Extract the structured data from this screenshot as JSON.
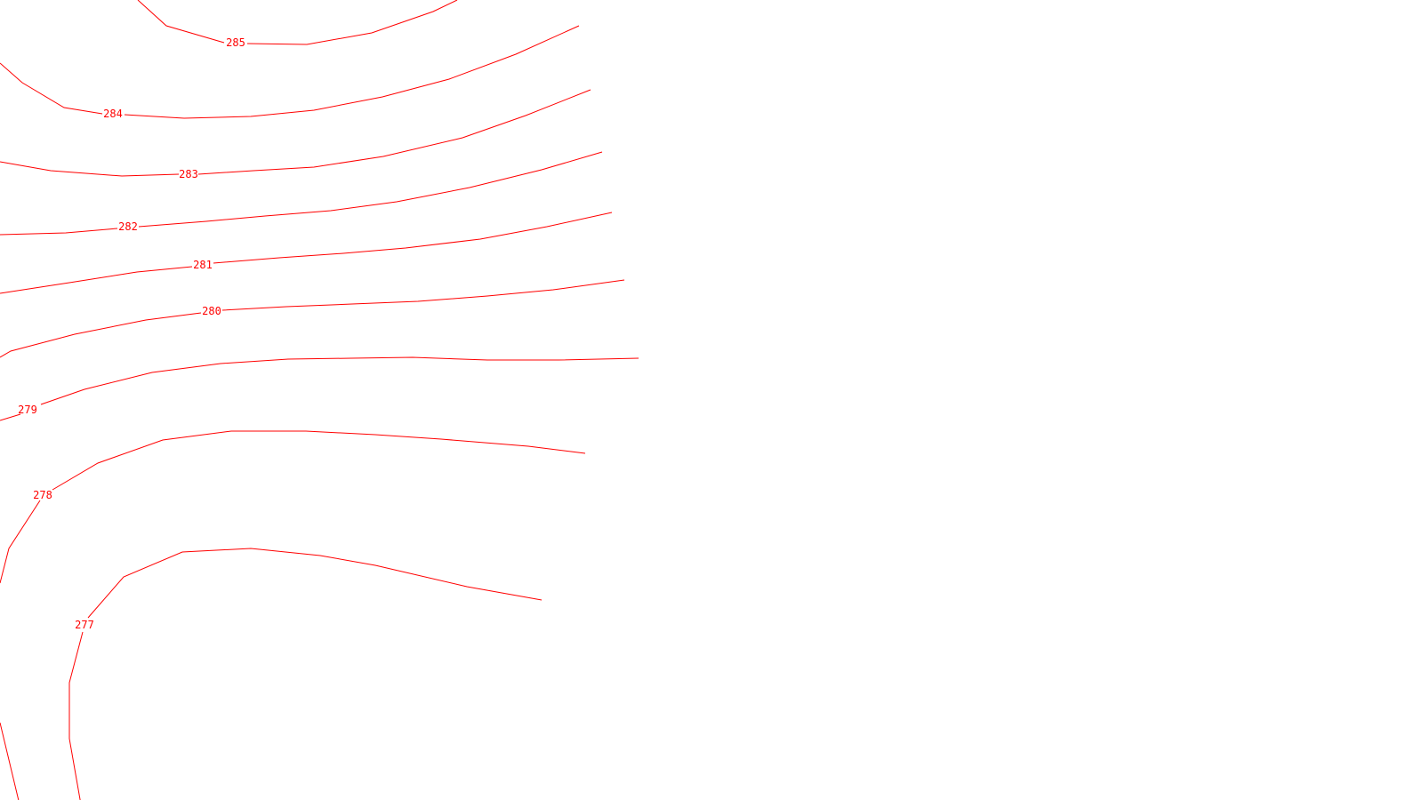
{
  "map": {
    "contour_color": "#ff0000",
    "background_color": "#ffffff",
    "contours": [
      {
        "elevation": "285",
        "label": "285"
      },
      {
        "elevation": "284",
        "label": "284"
      },
      {
        "elevation": "283",
        "label": "283"
      },
      {
        "elevation": "282",
        "label": "282"
      },
      {
        "elevation": "281",
        "label": "281"
      },
      {
        "elevation": "280",
        "label": "280"
      },
      {
        "elevation": "",
        "label": ""
      },
      {
        "elevation": "279",
        "label": "279"
      },
      {
        "elevation": "278",
        "label": "278"
      },
      {
        "elevation": "277",
        "label": "277"
      }
    ]
  }
}
